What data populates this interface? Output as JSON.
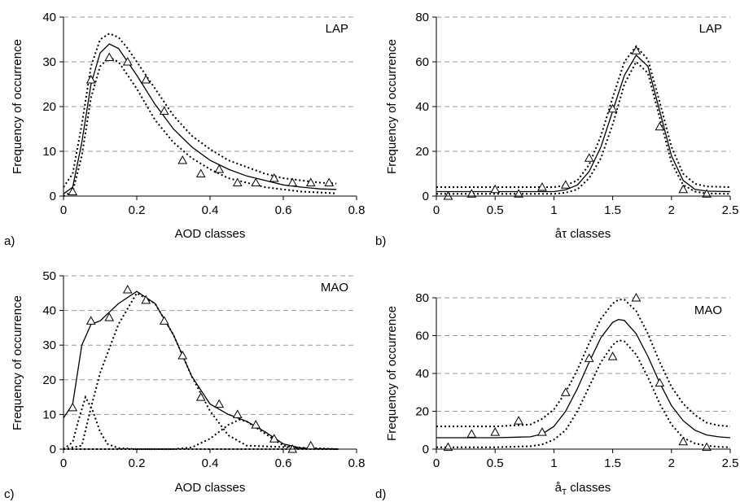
{
  "chart_data": [
    {
      "panel": "a)",
      "type": "scatter",
      "site": "LAP",
      "xlabel": "AOD classes",
      "ylabel": "Frequency of occurrence",
      "xlim": [
        0,
        0.8
      ],
      "ylim": [
        0,
        40
      ],
      "xticks": [
        "0",
        "0.2",
        "0.4",
        "0.6",
        "0.8"
      ],
      "yticks": [
        "0",
        "10",
        "20",
        "30",
        "40"
      ],
      "grid": "horizontal dashed",
      "observations": {
        "marker": "triangle",
        "x": [
          0.025,
          0.075,
          0.125,
          0.175,
          0.225,
          0.275,
          0.325,
          0.375,
          0.425,
          0.475,
          0.525,
          0.575,
          0.625,
          0.675,
          0.725
        ],
        "y": [
          1,
          26,
          31,
          30,
          26,
          19,
          8,
          5,
          6,
          3,
          3,
          4,
          3,
          3,
          3
        ]
      },
      "curves": [
        {
          "style": "solid",
          "x": [
            0.0,
            0.025,
            0.05,
            0.075,
            0.1,
            0.125,
            0.15,
            0.175,
            0.2,
            0.25,
            0.3,
            0.35,
            0.4,
            0.45,
            0.5,
            0.55,
            0.6,
            0.65,
            0.7,
            0.745
          ],
          "y": [
            0.5,
            2,
            12,
            25,
            32,
            34,
            33,
            30,
            27,
            20.5,
            15,
            11,
            8,
            6,
            4.5,
            3.5,
            2.5,
            2,
            1.6,
            1.5
          ]
        },
        {
          "style": "dotted",
          "x": [
            0.0,
            0.025,
            0.05,
            0.075,
            0.1,
            0.125,
            0.15,
            0.175,
            0.2,
            0.25,
            0.3,
            0.35,
            0.4,
            0.45,
            0.5,
            0.55,
            0.6,
            0.65,
            0.7,
            0.745
          ],
          "y": [
            2,
            5,
            16,
            29,
            35,
            36.3,
            35.5,
            33,
            30,
            24,
            18,
            13.5,
            10.5,
            8,
            6.5,
            5,
            4,
            3.5,
            3,
            2.8
          ]
        },
        {
          "style": "dotted",
          "x": [
            0.0,
            0.025,
            0.05,
            0.075,
            0.1,
            0.125,
            0.15,
            0.175,
            0.2,
            0.25,
            0.3,
            0.35,
            0.4,
            0.45,
            0.5,
            0.55,
            0.6,
            0.65,
            0.7,
            0.745
          ],
          "y": [
            0,
            1,
            9,
            22,
            29,
            31,
            30,
            27,
            24,
            17,
            12,
            8.5,
            6,
            4,
            3,
            2,
            1.5,
            1,
            0.8,
            0.6
          ]
        }
      ]
    },
    {
      "panel": "b)",
      "type": "scatter",
      "site": "LAP",
      "xlabel": "åτ classes",
      "ylabel": "Frequency of occurrence",
      "xlim": [
        0,
        2.5
      ],
      "ylim": [
        0,
        80
      ],
      "xticks": [
        "0",
        "0.5",
        "1",
        "1.5",
        "2",
        "2.5"
      ],
      "yticks": [
        "0",
        "20",
        "40",
        "60",
        "80"
      ],
      "grid": "horizontal dashed",
      "observations": {
        "marker": "triangle",
        "x": [
          0.1,
          0.3,
          0.5,
          0.7,
          0.9,
          1.1,
          1.3,
          1.5,
          1.7,
          1.9,
          2.1,
          2.3
        ],
        "y": [
          0,
          1,
          3,
          1,
          4,
          5,
          17,
          39,
          65,
          31,
          3,
          1
        ]
      },
      "curves": [
        {
          "style": "solid",
          "x": [
            0.0,
            0.5,
            1.0,
            1.1,
            1.2,
            1.3,
            1.4,
            1.5,
            1.6,
            1.7,
            1.8,
            1.9,
            2.0,
            2.1,
            2.2,
            2.3,
            2.5
          ],
          "y": [
            2,
            2,
            2,
            2.8,
            5,
            11,
            22,
            38,
            54,
            63,
            58,
            38,
            18,
            7,
            3,
            2.2,
            2
          ]
        },
        {
          "style": "dotted",
          "x": [
            0.0,
            0.5,
            1.0,
            1.1,
            1.2,
            1.3,
            1.4,
            1.5,
            1.6,
            1.7,
            1.8,
            1.9,
            2.0,
            2.1,
            2.2,
            2.3,
            2.5
          ],
          "y": [
            4,
            4,
            4,
            4.8,
            7,
            14,
            27,
            44,
            60,
            67,
            61,
            42,
            22,
            10,
            5.5,
            4.3,
            4
          ]
        },
        {
          "style": "dotted",
          "x": [
            0.0,
            0.5,
            1.0,
            1.1,
            1.2,
            1.3,
            1.4,
            1.5,
            1.6,
            1.7,
            1.8,
            1.9,
            2.0,
            2.1,
            2.2,
            2.3,
            2.5
          ],
          "y": [
            1,
            1,
            1,
            1.5,
            3,
            8,
            17,
            32,
            50,
            60,
            55,
            35,
            15,
            5,
            2,
            1.2,
            1
          ]
        }
      ]
    },
    {
      "panel": "c)",
      "type": "scatter",
      "site": "MAO",
      "xlabel": "AOD classes",
      "ylabel": "Frequency of occurrence",
      "xlim": [
        0,
        0.8
      ],
      "ylim": [
        0,
        50
      ],
      "xticks": [
        "0",
        "0.2",
        "0.4",
        "0.6",
        "0.8"
      ],
      "yticks": [
        "0",
        "10",
        "20",
        "30",
        "40",
        "50"
      ],
      "grid": "horizontal dashed",
      "observations": {
        "marker": "triangle",
        "x": [
          0.025,
          0.075,
          0.125,
          0.175,
          0.225,
          0.275,
          0.325,
          0.375,
          0.425,
          0.475,
          0.525,
          0.575,
          0.625,
          0.675
        ],
        "y": [
          12,
          37,
          38,
          46,
          43,
          37,
          27,
          15,
          13,
          10,
          7,
          3,
          0,
          1
        ]
      },
      "curves": [
        {
          "style": "solid",
          "x": [
            0.0,
            0.025,
            0.05,
            0.075,
            0.1,
            0.15,
            0.2,
            0.25,
            0.3,
            0.35,
            0.4,
            0.45,
            0.5,
            0.55,
            0.6,
            0.65,
            0.7,
            0.75
          ],
          "y": [
            9,
            13,
            30,
            36,
            37,
            42,
            45.5,
            42,
            33,
            21,
            13,
            10,
            8,
            5,
            1.5,
            0.3,
            0.1,
            0.1
          ]
        },
        {
          "style": "dotted",
          "x": [
            0.0,
            0.025,
            0.04,
            0.06,
            0.08,
            0.1,
            0.12,
            0.15,
            0.2,
            0.75
          ],
          "y": [
            0,
            2,
            8,
            15,
            11,
            5,
            1.5,
            0.3,
            0,
            0
          ]
        },
        {
          "style": "dotted",
          "x": [
            0.0,
            0.05,
            0.075,
            0.1,
            0.15,
            0.2,
            0.25,
            0.3,
            0.35,
            0.4,
            0.45,
            0.5,
            0.75
          ],
          "y": [
            0,
            1,
            12,
            22,
            36,
            45,
            42,
            33,
            21,
            11,
            4,
            1,
            0
          ]
        },
        {
          "style": "dotted",
          "x": [
            0.0,
            0.3,
            0.35,
            0.4,
            0.45,
            0.48,
            0.5,
            0.55,
            0.6,
            0.65,
            0.75
          ],
          "y": [
            0,
            0,
            0.5,
            3,
            7,
            8.5,
            8,
            4.5,
            1,
            0.1,
            0
          ]
        }
      ]
    },
    {
      "panel": "d)",
      "type": "scatter",
      "site": "MAO",
      "xlabel_main": "å",
      "xlabel_sub": "T",
      "xlabel_rest": " classes",
      "ylabel": "Frequency of occurrence",
      "xlim": [
        0,
        2.5
      ],
      "ylim": [
        0,
        80
      ],
      "xticks": [
        "0",
        "0.5",
        "1",
        "1.5",
        "2",
        "2.5"
      ],
      "yticks": [
        "0",
        "20",
        "40",
        "60",
        "80"
      ],
      "grid": "horizontal dashed",
      "observations": {
        "marker": "triangle",
        "x": [
          0.1,
          0.3,
          0.5,
          0.7,
          0.9,
          1.1,
          1.3,
          1.5,
          1.7,
          1.9,
          2.1,
          2.3
        ],
        "y": [
          1,
          8,
          9,
          15,
          9,
          30,
          48,
          49,
          80,
          35,
          4,
          1
        ]
      },
      "curves": [
        {
          "style": "solid",
          "x": [
            0.0,
            0.5,
            0.8,
            0.9,
            1.0,
            1.1,
            1.2,
            1.3,
            1.4,
            1.5,
            1.55,
            1.6,
            1.7,
            1.8,
            1.9,
            2.0,
            2.1,
            2.2,
            2.3,
            2.4,
            2.5
          ],
          "y": [
            6,
            6,
            6.5,
            8,
            12,
            20,
            32,
            46,
            59,
            67,
            68.5,
            68,
            61,
            49,
            35,
            23,
            15,
            10,
            7.5,
            6.5,
            6
          ]
        },
        {
          "style": "dotted",
          "x": [
            0.0,
            0.5,
            0.8,
            0.9,
            1.0,
            1.1,
            1.2,
            1.3,
            1.4,
            1.5,
            1.55,
            1.6,
            1.7,
            1.8,
            1.9,
            2.0,
            2.1,
            2.2,
            2.3,
            2.4,
            2.5
          ],
          "y": [
            12,
            12,
            13,
            16,
            21,
            30,
            42,
            56,
            69,
            77,
            79,
            79,
            73,
            61,
            46,
            33,
            24,
            18,
            14,
            12.5,
            12
          ]
        },
        {
          "style": "dotted",
          "x": [
            0.0,
            0.5,
            0.8,
            0.9,
            1.0,
            1.1,
            1.2,
            1.3,
            1.4,
            1.5,
            1.55,
            1.6,
            1.7,
            1.8,
            1.9,
            2.0,
            2.1,
            2.2,
            2.3,
            2.4,
            2.5
          ],
          "y": [
            1,
            1,
            1.5,
            2.5,
            5,
            10,
            20,
            33,
            46,
            55,
            57.5,
            57,
            50,
            38,
            24,
            13,
            6,
            3,
            1.8,
            1.2,
            1
          ]
        }
      ]
    }
  ]
}
